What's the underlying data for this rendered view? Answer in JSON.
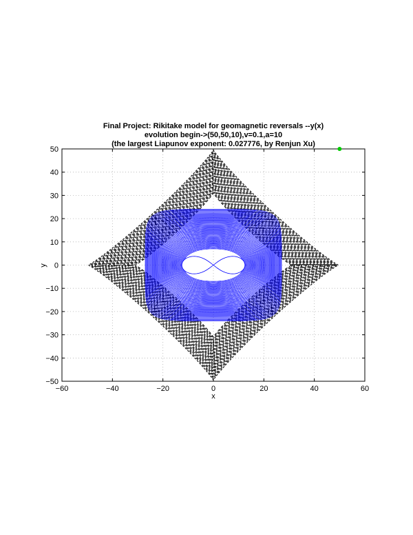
{
  "chart_data": {
    "type": "line",
    "title_lines": [
      "Final Project: Rikitake model for geomagnetic reversals --y(x)",
      "evolution begin->(50,50,10),v=0.1,a=10",
      "(the largest Liapunov exponent: 0.027776, by Renjun Xu)"
    ],
    "xlabel": "x",
    "ylabel": "y",
    "xlim": [
      -60,
      60
    ],
    "ylim": [
      -50,
      50
    ],
    "xticks": [
      -60,
      -40,
      -20,
      0,
      20,
      40,
      60
    ],
    "yticks": [
      -50,
      -40,
      -30,
      -20,
      -10,
      0,
      10,
      20,
      30,
      40,
      50
    ],
    "grid": true,
    "start_point": {
      "x": 50,
      "y": 50
    },
    "colors": {
      "outer_trajectory": "#000000",
      "inner_trajectory": "#0000ff",
      "start_marker": "#00cc00",
      "grid": "#b0b0b0"
    }
  }
}
